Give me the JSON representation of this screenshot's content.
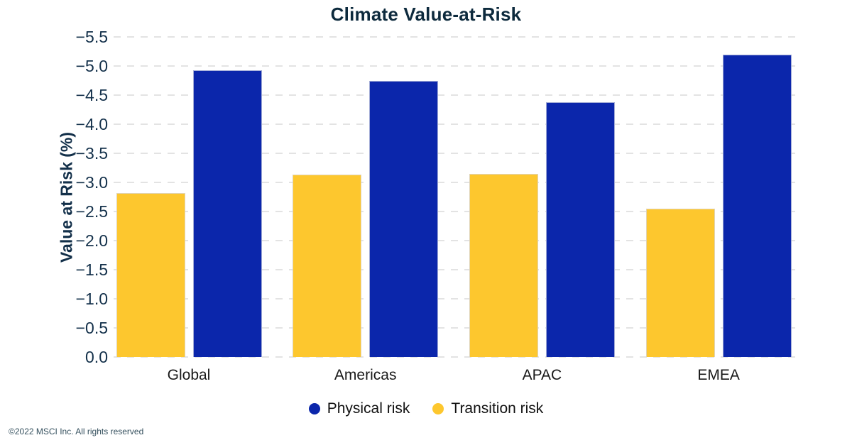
{
  "title": "Climate Value-at-Risk",
  "footer": "©2022 MSCI Inc. All rights reserved",
  "legend": [
    {
      "label": "Physical risk",
      "color": "#0b26ab"
    },
    {
      "label": "Transition risk",
      "color": "#fdc72e"
    }
  ],
  "colors": {
    "physical_risk_blue": "#0b26ab",
    "transition_risk_yellow": "#fdc72e",
    "axis_text_navy": "#13304a",
    "gridline_gray": "#e3e3e3",
    "background": "#ffffff"
  },
  "chart_data": {
    "type": "bar",
    "title": "Climate Value-at-Risk",
    "xlabel": "",
    "ylabel": "Value at Risk (%)",
    "categories": [
      "Global",
      "Americas",
      "APAC",
      "EMEA"
    ],
    "series": [
      {
        "name": "Physical risk",
        "color": "#0b26ab",
        "values": [
          -4.93,
          -4.74,
          -4.38,
          -5.2
        ]
      },
      {
        "name": "Transition risk",
        "color": "#fdc72e",
        "values": [
          -2.82,
          -3.13,
          -3.15,
          -2.55
        ]
      }
    ],
    "bar_order_in_group": [
      "Transition risk",
      "Physical risk"
    ],
    "y_axis": {
      "inverted": true,
      "range_bottom": 0.0,
      "range_top": -5.5,
      "step": 0.5,
      "tick_labels_top_to_bottom": [
        "−5.5",
        "−5.0",
        "−4.5",
        "−4.0",
        "−3.5",
        "−3.0",
        "−2.5",
        "−2.0",
        "−1.5",
        "−1.0",
        "−0.5",
        "0.0"
      ]
    },
    "grid": "horizontal dashed",
    "legend_position": "bottom center"
  }
}
